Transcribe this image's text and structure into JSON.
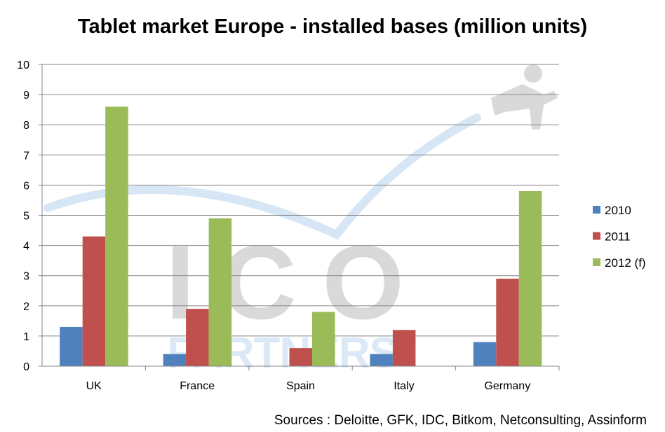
{
  "chart_data": {
    "type": "bar",
    "title": "Tablet market Europe - installed bases (million units)",
    "xlabel": "",
    "ylabel": "",
    "ylim": [
      0,
      10
    ],
    "yticks": [
      0,
      1,
      2,
      3,
      4,
      5,
      6,
      7,
      8,
      9,
      10
    ],
    "grid": true,
    "legend_position": "right",
    "categories": [
      "UK",
      "France",
      "Spain",
      "Italy",
      "Germany"
    ],
    "series": [
      {
        "name": "2010",
        "color": "#4F81BD",
        "values": [
          1.3,
          0.4,
          0,
          0.4,
          0.8
        ]
      },
      {
        "name": "2011",
        "color": "#C0504D",
        "values": [
          4.3,
          1.9,
          0.6,
          1.2,
          2.9
        ]
      },
      {
        "name": "2012 (f)",
        "color": "#9BBB59",
        "values": [
          8.6,
          4.9,
          1.8,
          0,
          5.8
        ]
      }
    ],
    "annotation": "Sources : Deloitte, GFK, IDC, Bitkom, Netconsulting, Assinform"
  },
  "watermark": {
    "logo_top": "ICO",
    "logo_bottom": "PARTNERS"
  }
}
